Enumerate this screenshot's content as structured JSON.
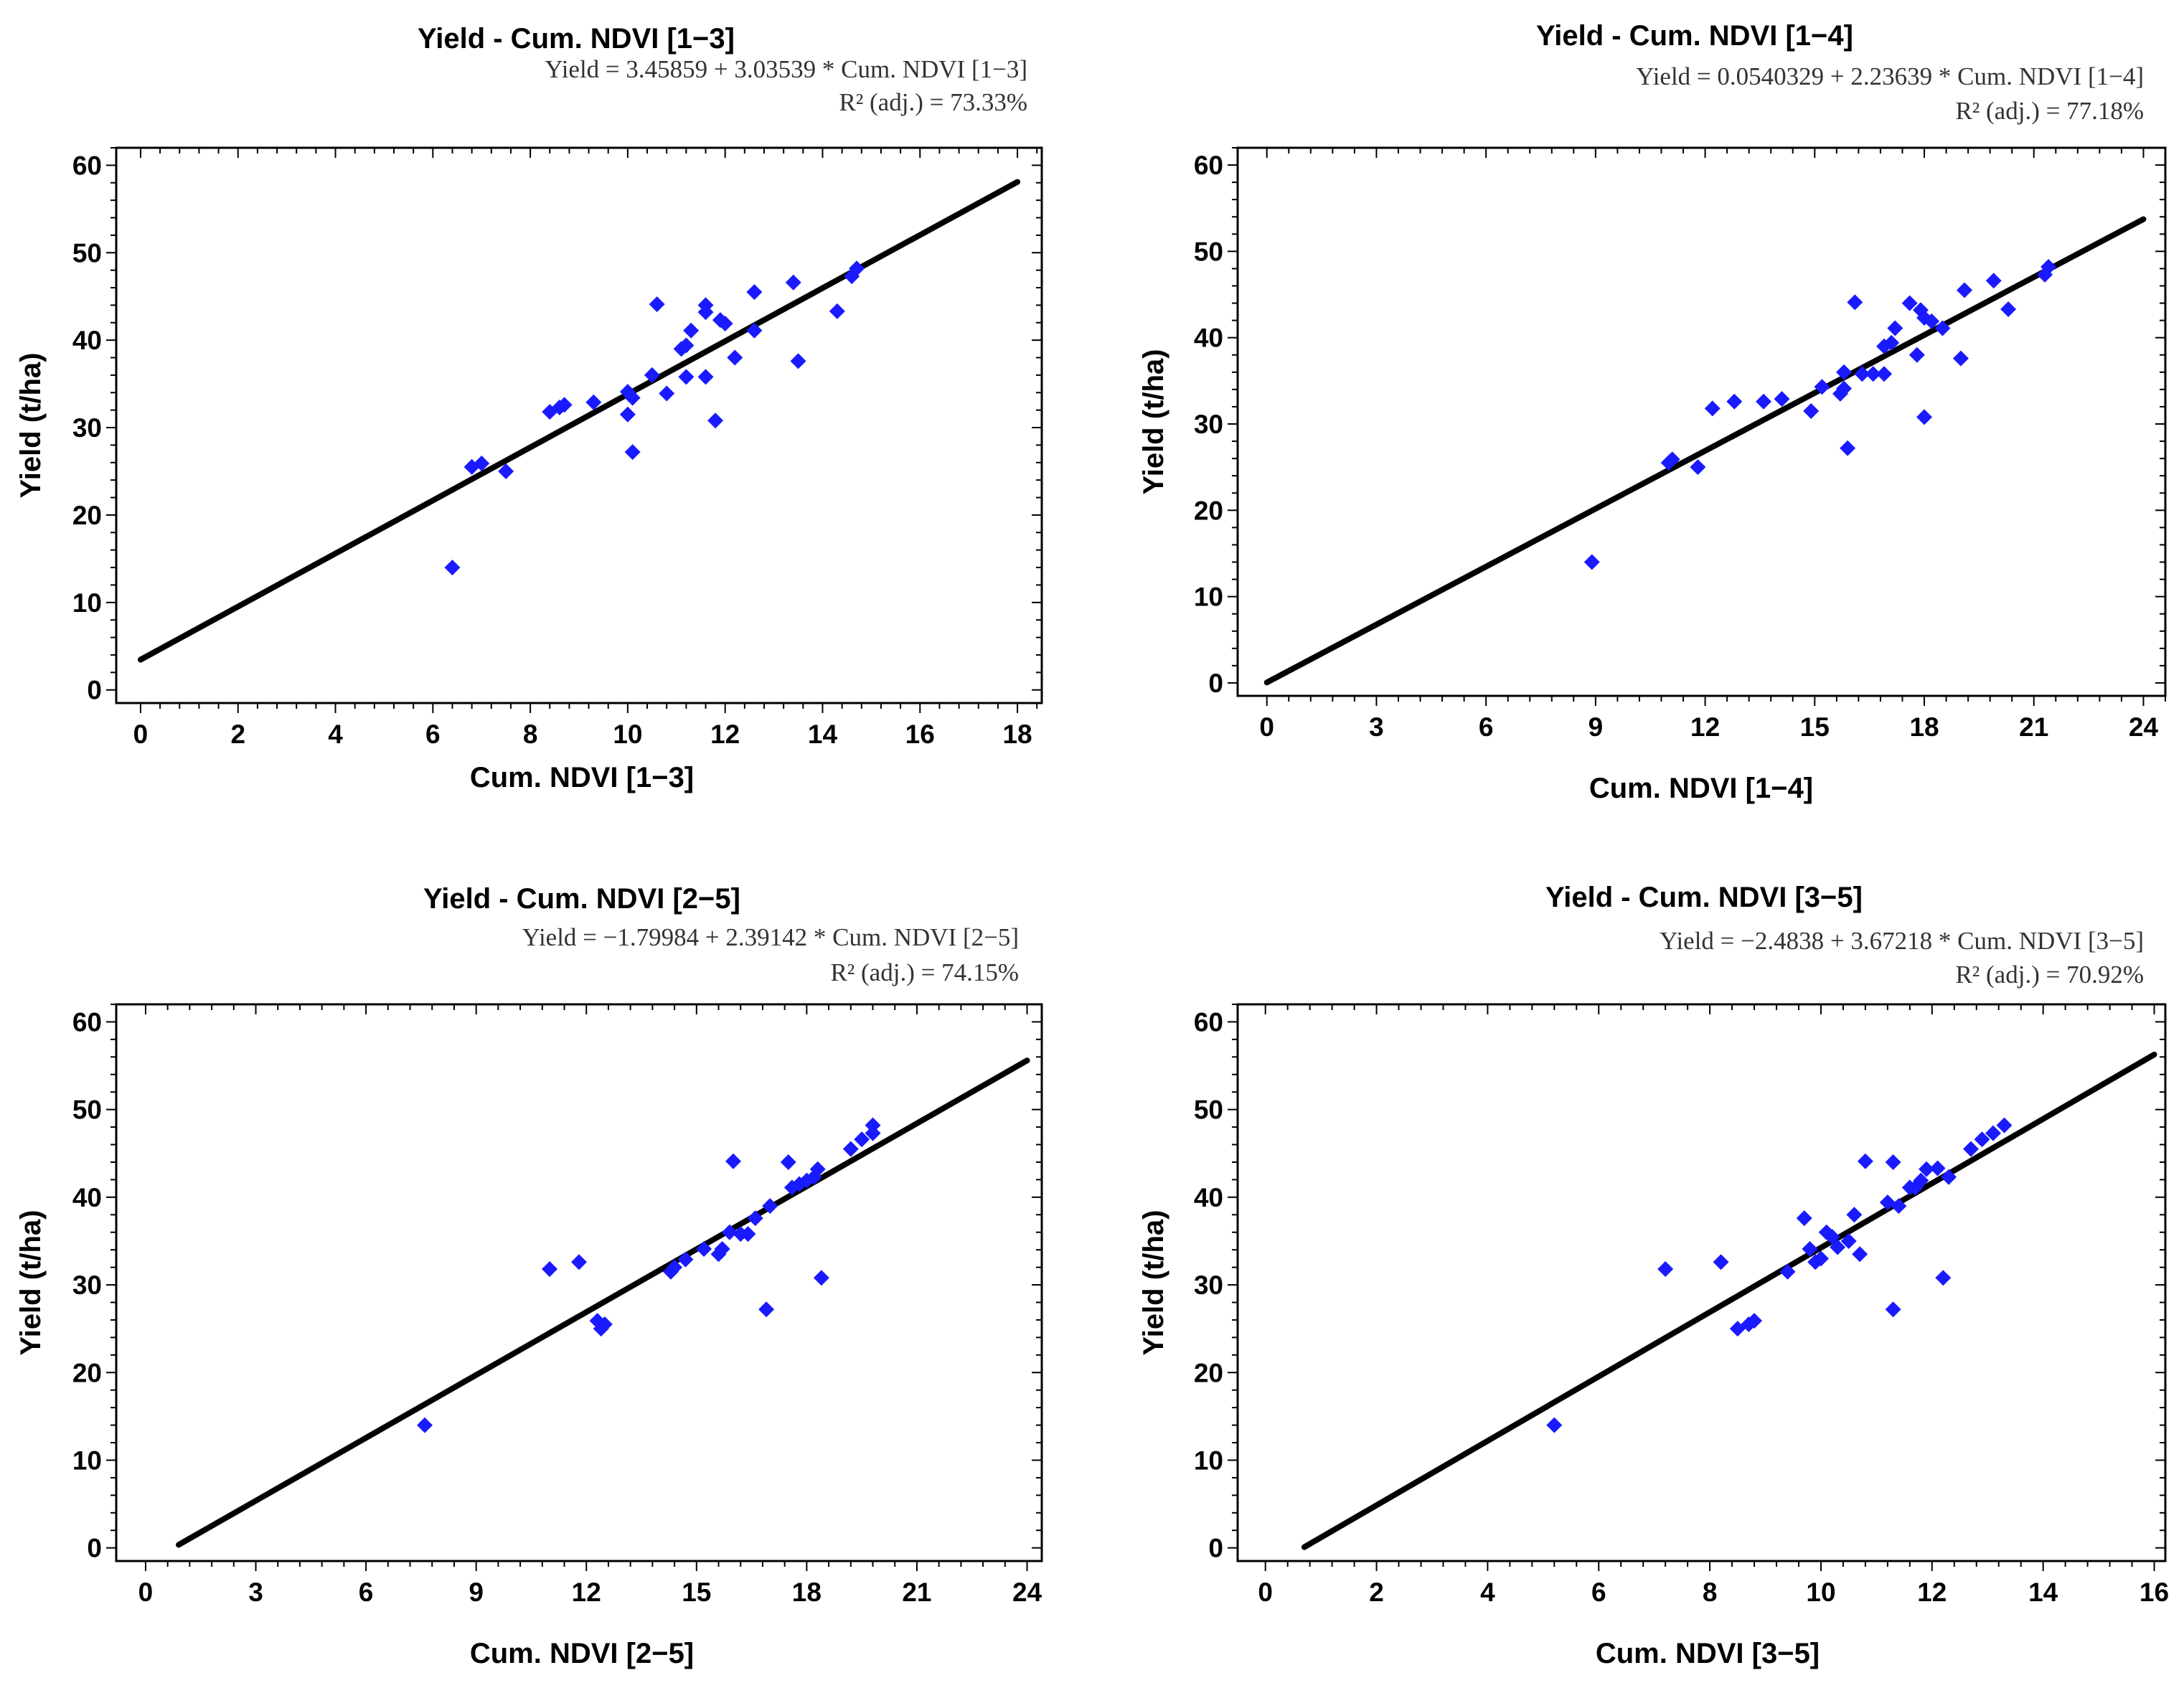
{
  "figure": {
    "background": "#ffffff",
    "point_color": "#1a1aff",
    "line_color": "#000000",
    "frame_color": "#000000"
  },
  "chart_data": [
    {
      "type": "scatter",
      "title": "Yield - Cum. NDVI [1−3]",
      "equation": "Yield = 3.45859 + 3.03539 * Cum. NDVI [1−3]",
      "r2": "R² (adj.) = 73.33%",
      "xlabel": "Cum. NDVI [1−3]",
      "ylabel": "Yield (t/ha)",
      "xlim": [
        -0.5,
        18.5
      ],
      "ylim": [
        -1.5,
        62
      ],
      "xticks": [
        0,
        2,
        4,
        6,
        8,
        10,
        12,
        14,
        16,
        18
      ],
      "yticks": [
        0,
        10,
        20,
        30,
        40,
        50,
        60
      ],
      "fit": {
        "intercept": 3.45859,
        "slope": 3.03539,
        "x_range": [
          0,
          18
        ]
      },
      "points": [
        [
          6.4,
          14.0
        ],
        [
          6.8,
          25.5
        ],
        [
          7.0,
          25.9
        ],
        [
          7.5,
          25.0
        ],
        [
          8.4,
          31.8
        ],
        [
          8.6,
          32.3
        ],
        [
          8.7,
          32.6
        ],
        [
          9.3,
          32.9
        ],
        [
          10.0,
          34.1
        ],
        [
          10.0,
          31.5
        ],
        [
          10.1,
          27.2
        ],
        [
          10.1,
          33.4
        ],
        [
          10.5,
          36.0
        ],
        [
          10.6,
          44.1
        ],
        [
          10.8,
          33.9
        ],
        [
          11.1,
          39.0
        ],
        [
          11.2,
          35.8
        ],
        [
          11.2,
          39.4
        ],
        [
          11.3,
          41.1
        ],
        [
          11.6,
          44.0
        ],
        [
          11.6,
          43.2
        ],
        [
          11.6,
          35.8
        ],
        [
          11.8,
          30.8
        ],
        [
          11.9,
          42.3
        ],
        [
          12.0,
          41.9
        ],
        [
          12.2,
          38.0
        ],
        [
          12.6,
          41.1
        ],
        [
          12.6,
          45.5
        ],
        [
          13.4,
          46.6
        ],
        [
          13.5,
          37.6
        ],
        [
          14.3,
          43.3
        ],
        [
          14.6,
          47.3
        ],
        [
          14.7,
          48.2
        ]
      ]
    },
    {
      "type": "scatter",
      "title": "Yield - Cum. NDVI [1−4]",
      "equation": "Yield = 0.0540329 + 2.23639 * Cum. NDVI [1−4]",
      "r2": "R² (adj.) = 77.18%",
      "xlabel": "Cum. NDVI [1−4]",
      "ylabel": "Yield (t/ha)",
      "xlim": [
        -0.8,
        24.6
      ],
      "ylim": [
        -1.5,
        62
      ],
      "xticks": [
        0,
        3,
        6,
        9,
        12,
        15,
        18,
        21,
        24
      ],
      "yticks": [
        0,
        10,
        20,
        30,
        40,
        50,
        60
      ],
      "fit": {
        "intercept": 0.0540329,
        "slope": 2.23639,
        "x_range": [
          0,
          24
        ]
      },
      "points": [
        [
          8.9,
          14.0
        ],
        [
          11.0,
          25.5
        ],
        [
          11.1,
          25.9
        ],
        [
          11.8,
          25.0
        ],
        [
          12.2,
          31.8
        ],
        [
          12.8,
          32.6
        ],
        [
          13.6,
          32.6
        ],
        [
          14.1,
          32.9
        ],
        [
          14.9,
          31.5
        ],
        [
          15.2,
          34.3
        ],
        [
          15.7,
          33.5
        ],
        [
          15.8,
          34.1
        ],
        [
          15.8,
          36.0
        ],
        [
          15.9,
          27.2
        ],
        [
          16.1,
          44.1
        ],
        [
          16.3,
          35.8
        ],
        [
          16.6,
          35.8
        ],
        [
          16.9,
          39.0
        ],
        [
          16.9,
          35.8
        ],
        [
          17.1,
          39.4
        ],
        [
          17.2,
          41.1
        ],
        [
          17.6,
          44.0
        ],
        [
          17.8,
          38.0
        ],
        [
          17.9,
          43.2
        ],
        [
          18.0,
          30.8
        ],
        [
          18.0,
          42.3
        ],
        [
          18.2,
          41.9
        ],
        [
          18.5,
          41.1
        ],
        [
          19.0,
          37.6
        ],
        [
          19.1,
          45.5
        ],
        [
          19.9,
          46.6
        ],
        [
          20.3,
          43.3
        ],
        [
          21.3,
          47.3
        ],
        [
          21.4,
          48.2
        ]
      ]
    },
    {
      "type": "scatter",
      "title": "Yield - Cum. NDVI [2−5]",
      "equation": "Yield = −1.79984 + 2.39142 * Cum. NDVI [2−5]",
      "r2": "R² (adj.) = 74.15%",
      "xlabel": "Cum. NDVI [2−5]",
      "ylabel": "Yield (t/ha)",
      "xlim": [
        -0.8,
        24.4
      ],
      "ylim": [
        -1.5,
        62
      ],
      "xticks": [
        0,
        3,
        6,
        9,
        12,
        15,
        18,
        21,
        24
      ],
      "yticks": [
        0,
        10,
        20,
        30,
        40,
        50,
        60
      ],
      "fit": {
        "intercept": -1.79984,
        "slope": 2.39142,
        "x_range": [
          0.9,
          24
        ]
      },
      "points": [
        [
          7.6,
          14.0
        ],
        [
          11.0,
          31.8
        ],
        [
          11.8,
          32.6
        ],
        [
          12.3,
          25.9
        ],
        [
          12.4,
          25.0
        ],
        [
          12.5,
          25.5
        ],
        [
          14.3,
          31.5
        ],
        [
          14.4,
          32.0
        ],
        [
          14.7,
          32.9
        ],
        [
          15.2,
          34.1
        ],
        [
          15.6,
          33.5
        ],
        [
          15.7,
          34.1
        ],
        [
          15.9,
          36.0
        ],
        [
          16.0,
          44.1
        ],
        [
          16.2,
          35.8
        ],
        [
          16.4,
          35.8
        ],
        [
          16.6,
          37.6
        ],
        [
          16.9,
          27.2
        ],
        [
          17.0,
          39.0
        ],
        [
          17.5,
          44.0
        ],
        [
          17.6,
          41.1
        ],
        [
          17.8,
          41.5
        ],
        [
          18.0,
          41.9
        ],
        [
          18.2,
          42.3
        ],
        [
          18.3,
          43.2
        ],
        [
          18.4,
          30.8
        ],
        [
          19.2,
          45.5
        ],
        [
          19.5,
          46.6
        ],
        [
          19.8,
          47.3
        ],
        [
          19.8,
          48.2
        ]
      ]
    },
    {
      "type": "scatter",
      "title": "Yield - Cum. NDVI [3−5]",
      "equation": "Yield = −2.4838 + 3.67218 * Cum. NDVI [3−5]",
      "r2": "R² (adj.) = 70.92%",
      "xlabel": "Cum. NDVI [3−5]",
      "ylabel": "Yield (t/ha)",
      "xlim": [
        -0.5,
        16.2
      ],
      "ylim": [
        -1.5,
        62
      ],
      "xticks": [
        0,
        2,
        4,
        6,
        8,
        10,
        12,
        14,
        16
      ],
      "yticks": [
        0,
        10,
        20,
        30,
        40,
        50,
        60
      ],
      "fit": {
        "intercept": -2.4838,
        "slope": 3.67218,
        "x_range": [
          0.7,
          16
        ]
      },
      "points": [
        [
          5.2,
          14.0
        ],
        [
          7.2,
          31.8
        ],
        [
          8.2,
          32.6
        ],
        [
          8.5,
          25.0
        ],
        [
          8.7,
          25.5
        ],
        [
          8.8,
          25.9
        ],
        [
          9.4,
          31.5
        ],
        [
          9.7,
          37.6
        ],
        [
          9.8,
          34.1
        ],
        [
          9.9,
          32.6
        ],
        [
          10.0,
          33.0
        ],
        [
          10.1,
          36.0
        ],
        [
          10.2,
          35.5
        ],
        [
          10.3,
          34.3
        ],
        [
          10.5,
          35.0
        ],
        [
          10.6,
          38.0
        ],
        [
          10.7,
          33.5
        ],
        [
          10.8,
          44.1
        ],
        [
          11.2,
          39.4
        ],
        [
          11.3,
          27.2
        ],
        [
          11.3,
          44.0
        ],
        [
          11.4,
          39.0
        ],
        [
          11.6,
          41.1
        ],
        [
          11.7,
          41.1
        ],
        [
          11.8,
          41.9
        ],
        [
          11.9,
          43.2
        ],
        [
          12.1,
          43.3
        ],
        [
          12.2,
          30.8
        ],
        [
          12.3,
          42.3
        ],
        [
          12.7,
          45.5
        ],
        [
          12.9,
          46.6
        ],
        [
          13.1,
          47.3
        ],
        [
          13.3,
          48.2
        ]
      ]
    }
  ]
}
